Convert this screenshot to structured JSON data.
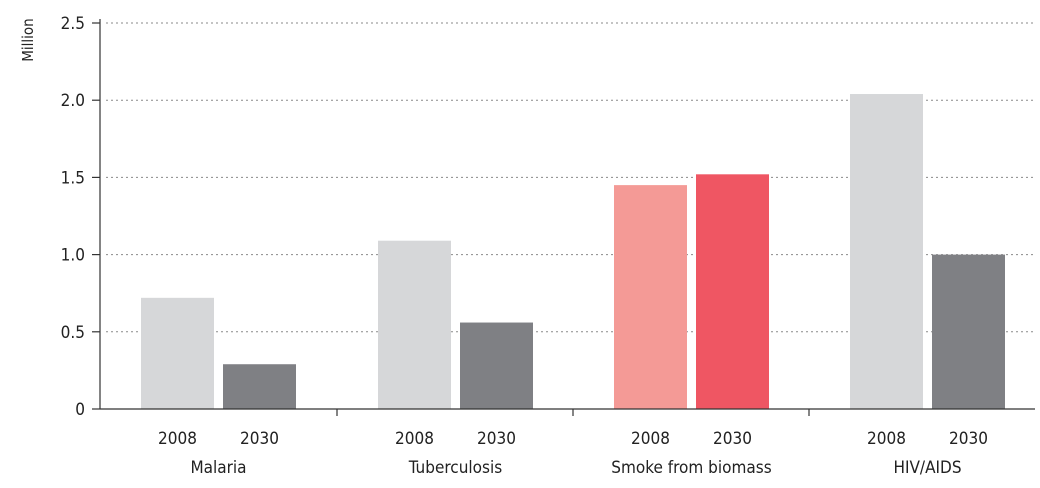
{
  "chart_data": {
    "type": "bar",
    "ylabel": "Million",
    "ylim": [
      0,
      2.5
    ],
    "yticks": [
      "0",
      "0.5",
      "1.0",
      "1.5",
      "2.0",
      "2.5"
    ],
    "ytick_values": [
      0,
      0.5,
      1.0,
      1.5,
      2.0,
      2.5
    ],
    "grid": "horizontal-dotted",
    "groups": [
      {
        "label": "Malaria",
        "bars": [
          {
            "label": "2008",
            "value": 0.72,
            "color": "#d6d7d9"
          },
          {
            "label": "2030",
            "value": 0.29,
            "color": "#7f8084"
          }
        ]
      },
      {
        "label": "Tuberculosis",
        "bars": [
          {
            "label": "2008",
            "value": 1.09,
            "color": "#d6d7d9"
          },
          {
            "label": "2030",
            "value": 0.56,
            "color": "#7f8084"
          }
        ]
      },
      {
        "label": "Smoke from biomass",
        "bars": [
          {
            "label": "2008",
            "value": 1.45,
            "color": "#f49a96"
          },
          {
            "label": "2030",
            "value": 1.52,
            "color": "#ef5663"
          }
        ]
      },
      {
        "label": "HIV/AIDS",
        "bars": [
          {
            "label": "2008",
            "value": 2.04,
            "color": "#d6d7d9"
          },
          {
            "label": "2030",
            "value": 1.0,
            "color": "#7f8084"
          }
        ]
      }
    ]
  }
}
